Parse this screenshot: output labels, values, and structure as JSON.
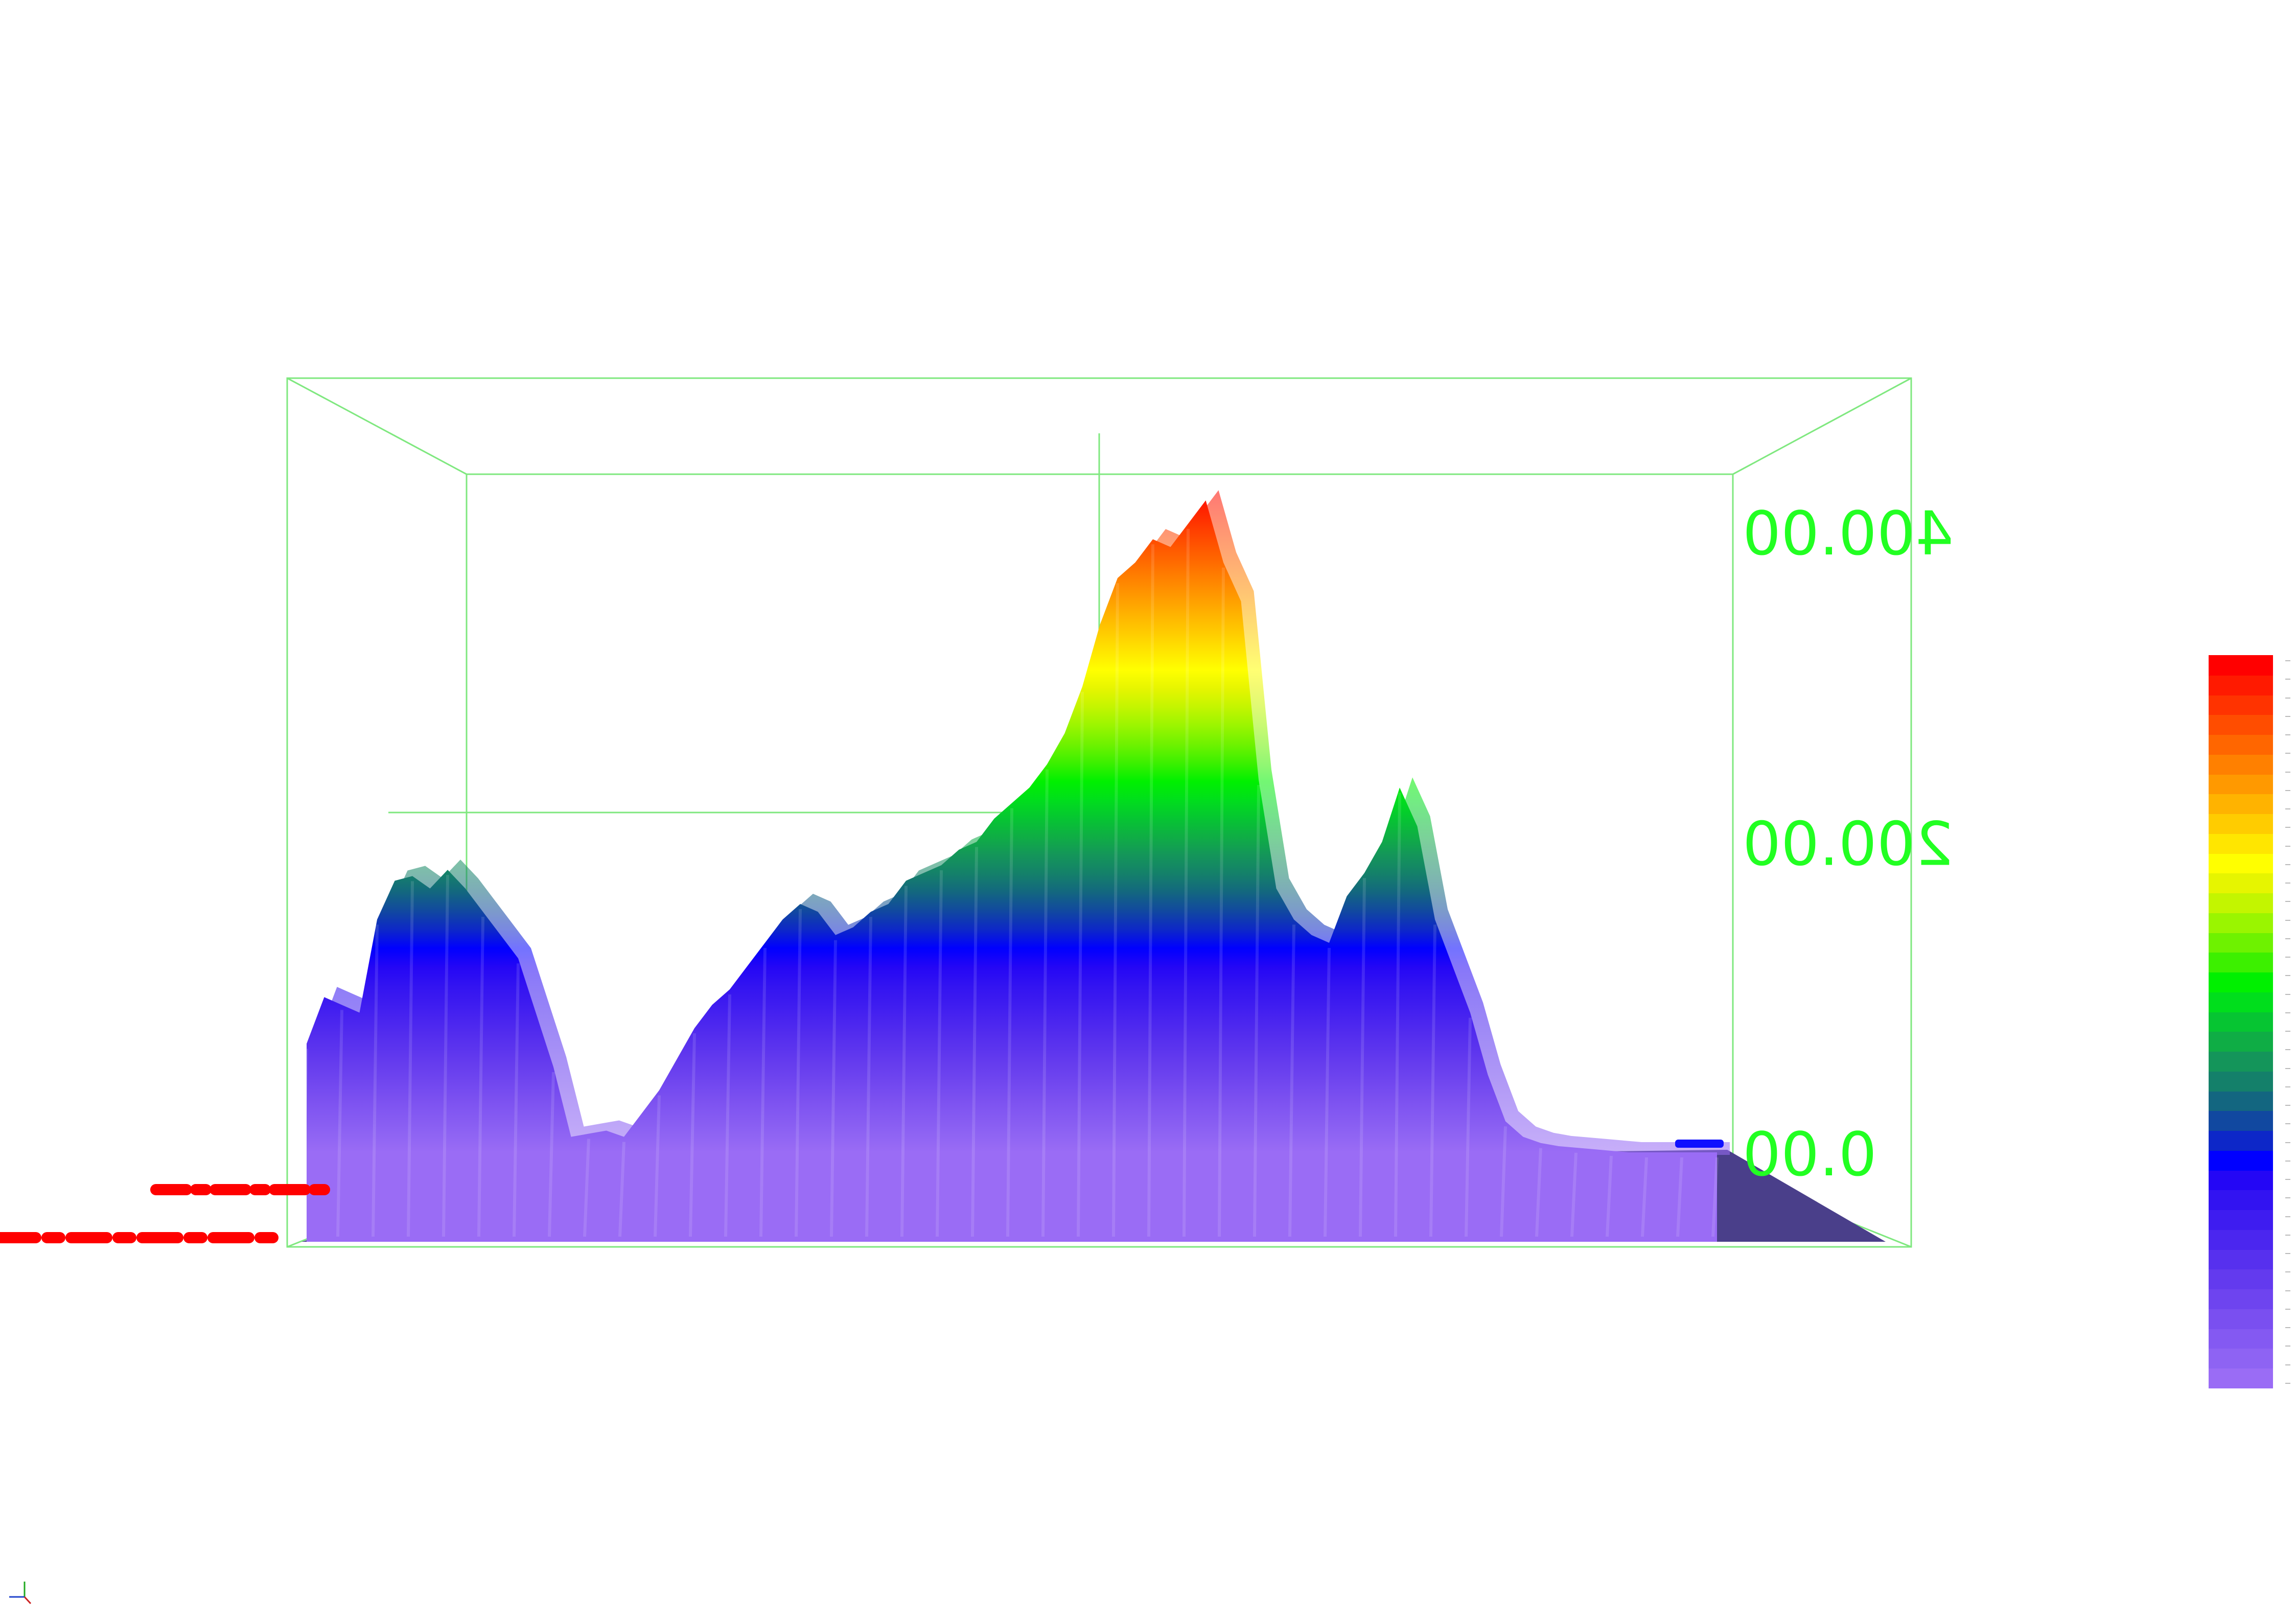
{
  "chart_data": {
    "type": "surface-3d",
    "title": "",
    "xlabel": "",
    "ylabel": "",
    "zlabel": "",
    "z_axis": {
      "ticks": [
        {
          "value": 0,
          "label": "0.00"
        },
        {
          "value": 200,
          "label": "200.00"
        },
        {
          "value": 400,
          "label": "400.00"
        }
      ],
      "range": [
        0,
        430
      ],
      "labels_mirrored": true
    },
    "profile": {
      "description_units": "height along front edge, left to right",
      "x": [
        0,
        1,
        2,
        3,
        4,
        5,
        6,
        7,
        8,
        9,
        10,
        11,
        12,
        13,
        14,
        15,
        16,
        17,
        18,
        19,
        20,
        21,
        22,
        23,
        24,
        25,
        26,
        27,
        28,
        29,
        30,
        31,
        32,
        33,
        34,
        35,
        36,
        37,
        38,
        39,
        40,
        41,
        42,
        43,
        44,
        45,
        46,
        47,
        48,
        49,
        50,
        51,
        52,
        53,
        54,
        55,
        56,
        57,
        58,
        59,
        60,
        61,
        62,
        63,
        64,
        65,
        66,
        67,
        68,
        69,
        70,
        71,
        72,
        73,
        74,
        75,
        76,
        77,
        78,
        79,
        80
      ],
      "z": [
        70,
        100,
        95,
        90,
        150,
        175,
        178,
        170,
        182,
        170,
        155,
        140,
        125,
        90,
        55,
        10,
        12,
        14,
        10,
        25,
        40,
        60,
        80,
        95,
        105,
        120,
        135,
        150,
        160,
        155,
        140,
        145,
        155,
        160,
        175,
        180,
        185,
        195,
        200,
        215,
        225,
        235,
        250,
        270,
        300,
        340,
        370,
        380,
        395,
        390,
        405,
        420,
        380,
        355,
        240,
        170,
        150,
        140,
        135,
        165,
        180,
        200,
        235,
        210,
        150,
        120,
        90,
        50,
        20,
        10,
        6,
        4,
        3,
        2,
        1,
        0,
        0,
        0,
        0,
        0,
        0
      ]
    },
    "colorbar": {
      "colors": [
        "#9a6cf5",
        "#8e63f3",
        "#8459f2",
        "#7a4ff0",
        "#6e44ef",
        "#633aee",
        "#5730ee",
        "#4b26ef",
        "#3e1cf0",
        "#3213f1",
        "#2406f5",
        "#0000ff",
        "#0d27c8",
        "#1148a0",
        "#136680",
        "#14806a",
        "#14955a",
        "#0fad45",
        "#06c532",
        "#00de1c",
        "#00f000",
        "#3cf000",
        "#6ef200",
        "#9af500",
        "#c3f500",
        "#e6f500",
        "#ffff00",
        "#ffe600",
        "#ffcc00",
        "#ffb300",
        "#ff9900",
        "#ff8000",
        "#ff6600",
        "#ff4d00",
        "#ff3300",
        "#ff1a00",
        "#ff0000"
      ],
      "tick_count": 40
    },
    "grid": false,
    "legend": "right"
  },
  "colors": {
    "axis_box": "#7fe87f",
    "axis_label": "#22ff22",
    "surface_base": "#6a4fe0",
    "floor": "#4a3f8a",
    "red_marks": "#ff0000",
    "blue_mark": "#1010ff"
  }
}
